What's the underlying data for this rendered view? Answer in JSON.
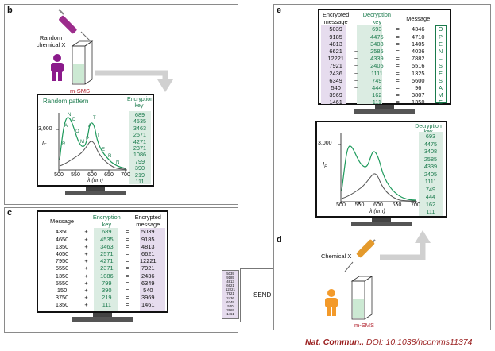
{
  "panels": {
    "b": "b",
    "c": "c",
    "d": "d",
    "e": "e"
  },
  "b": {
    "chemical_label": [
      "Random",
      "chemical X"
    ],
    "msms_label": "m-SMS",
    "pattern_title": "Random pattern",
    "key_header": [
      "Encryption",
      "key"
    ],
    "keys": [
      "689",
      "4535",
      "3463",
      "2571",
      "4271",
      "2371",
      "1086",
      "799",
      "390",
      "219",
      "111"
    ],
    "y_axis_tick": "3,000",
    "y_axis_label": "I",
    "y_axis_sub": "F",
    "x_ticks": [
      "500",
      "550",
      "600",
      "650",
      "700"
    ],
    "x_axis_label": "λ (nm)",
    "peak_letters": [
      "R",
      "A",
      "N",
      "D",
      "O",
      "M",
      "P",
      "A",
      "T",
      "T",
      "E",
      "R",
      "N"
    ]
  },
  "c": {
    "headers": {
      "message": "Message",
      "key": [
        "Encryption",
        "key"
      ],
      "encrypted": [
        "Encrypted",
        "message"
      ]
    },
    "rows": [
      {
        "m": "4350",
        "op": "+",
        "k": "689",
        "eq": "=",
        "e": "5039"
      },
      {
        "m": "4650",
        "op": "+",
        "k": "4535",
        "eq": "=",
        "e": "9185"
      },
      {
        "m": "1350",
        "op": "+",
        "k": "3463",
        "eq": "=",
        "e": "4813"
      },
      {
        "m": "4050",
        "op": "+",
        "k": "2571",
        "eq": "=",
        "e": "6621"
      },
      {
        "m": "7950",
        "op": "+",
        "k": "4271",
        "eq": "=",
        "e": "12221"
      },
      {
        "m": "5550",
        "op": "+",
        "k": "2371",
        "eq": "=",
        "e": "7921"
      },
      {
        "m": "1350",
        "op": "+",
        "k": "1086",
        "eq": "=",
        "e": "2436"
      },
      {
        "m": "5550",
        "op": "+",
        "k": "799",
        "eq": "=",
        "e": "6349"
      },
      {
        "m": "150",
        "op": "+",
        "k": "390",
        "eq": "=",
        "e": "540"
      },
      {
        "m": "3750",
        "op": "+",
        "k": "219",
        "eq": "=",
        "e": "3969"
      },
      {
        "m": "1350",
        "op": "+",
        "k": "111",
        "eq": "=",
        "e": "1461"
      }
    ]
  },
  "send": {
    "label": "SEND",
    "numbers": [
      "5039",
      "9185",
      "4813",
      "6621",
      "12221",
      "7921",
      "2436",
      "6349",
      "540",
      "3969",
      "1461"
    ]
  },
  "d": {
    "chemical_label": "Chemical X",
    "msms_label": "m-SMS"
  },
  "e": {
    "headers": {
      "encrypted": [
        "Encrypted",
        "message"
      ],
      "key": [
        "Decryption",
        "key"
      ],
      "message": "Message"
    },
    "rows": [
      {
        "e": "5039",
        "op": "−",
        "k": "693",
        "eq": "=",
        "m": "4346",
        "l": "O"
      },
      {
        "e": "9185",
        "op": "−",
        "k": "4475",
        "eq": "=",
        "m": "4710",
        "l": "P"
      },
      {
        "e": "4813",
        "op": "−",
        "k": "3408",
        "eq": "=",
        "m": "1405",
        "l": "E"
      },
      {
        "e": "6621",
        "op": "−",
        "k": "2585",
        "eq": "=",
        "m": "4036",
        "l": "N"
      },
      {
        "e": "12221",
        "op": "−",
        "k": "4339",
        "eq": "=",
        "m": "7882",
        "l": "–"
      },
      {
        "e": "7921",
        "op": "−",
        "k": "2405",
        "eq": "=",
        "m": "5516",
        "l": "S"
      },
      {
        "e": "2436",
        "op": "−",
        "k": "1111",
        "eq": "=",
        "m": "1325",
        "l": "E"
      },
      {
        "e": "6349",
        "op": "−",
        "k": "749",
        "eq": "=",
        "m": "5600",
        "l": "S"
      },
      {
        "e": "540",
        "op": "−",
        "k": "444",
        "eq": "=",
        "m": "96",
        "l": "A"
      },
      {
        "e": "3969",
        "op": "−",
        "k": "162",
        "eq": "=",
        "m": "3807",
        "l": "M"
      },
      {
        "e": "1461",
        "op": "−",
        "k": "111",
        "eq": "=",
        "m": "1350",
        "l": "E"
      }
    ],
    "dkey_header": "Decryption key",
    "dkeys": [
      "693",
      "4475",
      "3408",
      "2585",
      "4339",
      "2405",
      "1111",
      "749",
      "444",
      "162",
      "111"
    ],
    "y_axis_tick": "3,000",
    "y_axis_label": "I",
    "y_axis_sub": "F",
    "x_ticks": [
      "500",
      "550",
      "600",
      "650",
      "700"
    ],
    "x_axis_label": "λ (nm)"
  },
  "citation": {
    "journal": "Nat. Commun.,",
    "doi": " DOI: 10.1038/ncomms11374"
  },
  "colors": {
    "accent": "#1a7a4c",
    "key_bg": "#dbece2",
    "message_bg": "#e6dcee",
    "person": "#8b1a8b",
    "person_d": "#f39a2a",
    "citation": "#9a1f1f"
  }
}
